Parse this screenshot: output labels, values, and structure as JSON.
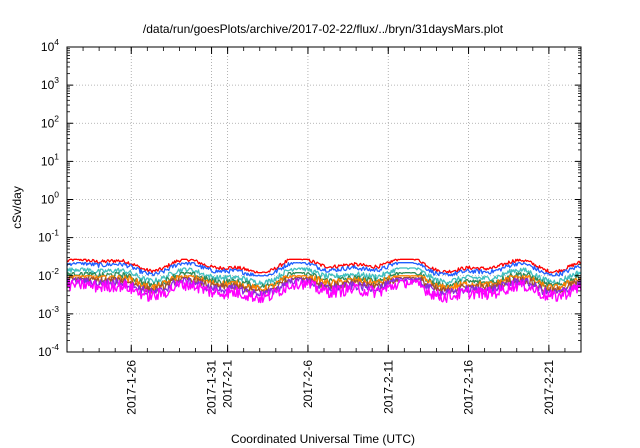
{
  "chart_data": {
    "type": "line",
    "title": "/data/run/goesPlots/archive/2017-02-22/flux/../bryn/31daysMars.plot",
    "xlabel": "Coordinated Universal Time (UTC)",
    "ylabel": "cSv/day",
    "yscale": "log",
    "ylim": [
      0.0001,
      10000
    ],
    "xlim": [
      "2017-01-22",
      "2017-02-23"
    ],
    "grid": true,
    "legend": "none",
    "y_ticks": [
      {
        "base": "10",
        "exp": "-4"
      },
      {
        "base": "10",
        "exp": "-3"
      },
      {
        "base": "10",
        "exp": "-2"
      },
      {
        "base": "10",
        "exp": "-1"
      },
      {
        "base": "10",
        "exp": "0"
      },
      {
        "base": "10",
        "exp": "1"
      },
      {
        "base": "10",
        "exp": "2"
      },
      {
        "base": "10",
        "exp": "3"
      },
      {
        "base": "10",
        "exp": "4"
      }
    ],
    "x_ticks": [
      {
        "date": "2017-01-26",
        "label": "2017-1-26"
      },
      {
        "date": "2017-01-31",
        "label": "2017-1-31"
      },
      {
        "date": "2017-02-01",
        "label": "2017-2-1"
      },
      {
        "date": "2017-02-06",
        "label": "2017-2-6"
      },
      {
        "date": "2017-02-11",
        "label": "2017-2-11"
      },
      {
        "date": "2017-02-16",
        "label": "2017-2-16"
      },
      {
        "date": "2017-02-21",
        "label": "2017-2-21"
      }
    ],
    "series": [
      {
        "color": "#ff0000",
        "level": 0.019,
        "min": 0.012,
        "max": 0.027
      },
      {
        "color": "#1f5fff",
        "level": 0.0155,
        "min": 0.01,
        "max": 0.022
      },
      {
        "color": "#3fbfbf",
        "level": 0.0105,
        "min": 0.006,
        "max": 0.016
      },
      {
        "color": "#2e8b57",
        "level": 0.0082,
        "min": 0.005,
        "max": 0.012
      },
      {
        "color": "#ff7f00",
        "level": 0.0072,
        "min": 0.004,
        "max": 0.01
      },
      {
        "color": "#a0522d",
        "level": 0.006,
        "min": 0.0035,
        "max": 0.009
      },
      {
        "color": "#8a2be2",
        "level": 0.0052,
        "min": 0.003,
        "max": 0.0085
      },
      {
        "color": "#ff00ff",
        "level": 0.0042,
        "min": 0.0013,
        "max": 0.0075
      }
    ]
  }
}
